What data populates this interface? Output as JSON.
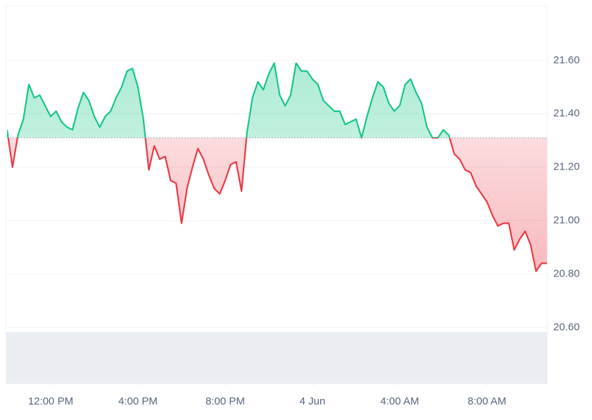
{
  "chart_data": {
    "type": "line",
    "x": [
      10,
      10.25,
      10.5,
      10.75,
      11,
      11.25,
      11.5,
      11.75,
      12,
      12.25,
      12.5,
      12.75,
      13,
      13.25,
      13.5,
      13.75,
      14,
      14.25,
      14.5,
      14.75,
      15,
      15.25,
      15.5,
      15.75,
      16,
      16.25,
      16.5,
      16.75,
      17,
      17.25,
      17.5,
      17.75,
      18,
      18.25,
      18.5,
      18.75,
      19,
      19.25,
      19.5,
      19.75,
      20,
      20.25,
      20.5,
      20.75,
      21,
      21.25,
      21.5,
      21.75,
      22,
      22.25,
      22.5,
      22.75,
      23,
      23.25,
      23.5,
      23.75,
      24,
      24.25,
      24.5,
      24.75,
      25,
      25.25,
      25.5,
      25.75,
      26,
      26.25,
      26.5,
      26.75,
      27,
      27.25,
      27.5,
      27.75,
      28,
      28.25,
      28.5,
      28.75,
      29,
      29.25,
      29.5,
      29.75,
      30,
      30.25,
      30.5,
      30.75,
      31,
      31.25,
      31.5,
      31.75,
      32,
      32.25,
      32.5,
      32.75,
      33,
      33.25,
      33.5,
      33.75,
      34,
      34.25,
      34.5,
      34.75
    ],
    "values": [
      21.34,
      21.2,
      21.32,
      21.38,
      21.51,
      21.46,
      21.47,
      21.43,
      21.39,
      21.41,
      21.37,
      21.35,
      21.34,
      21.42,
      21.48,
      21.45,
      21.39,
      21.35,
      21.39,
      21.41,
      21.46,
      21.5,
      21.56,
      21.57,
      21.5,
      21.38,
      21.19,
      21.28,
      21.23,
      21.24,
      21.15,
      21.14,
      20.99,
      21.12,
      21.2,
      21.27,
      21.23,
      21.17,
      21.12,
      21.1,
      21.15,
      21.21,
      21.22,
      21.11,
      21.33,
      21.46,
      21.52,
      21.49,
      21.55,
      21.59,
      21.47,
      21.43,
      21.47,
      21.59,
      21.56,
      21.56,
      21.53,
      21.51,
      21.45,
      21.43,
      21.41,
      21.41,
      21.36,
      21.37,
      21.38,
      21.31,
      21.39,
      21.46,
      21.52,
      21.5,
      21.44,
      21.41,
      21.43,
      21.51,
      21.53,
      21.48,
      21.44,
      21.35,
      21.31,
      21.31,
      21.34,
      21.32,
      21.25,
      21.23,
      21.19,
      21.18,
      21.13,
      21.1,
      21.07,
      21.02,
      20.98,
      20.99,
      20.99,
      20.89,
      20.93,
      20.96,
      20.91,
      20.81,
      20.84,
      20.84
    ],
    "reference_value": 21.31,
    "colors": {
      "above": "#16c784",
      "below": "#ea3943"
    },
    "xlim": [
      10,
      34.75
    ],
    "xticks": [
      {
        "value": 12,
        "label": "12:00 PM"
      },
      {
        "value": 16,
        "label": "4:00 PM"
      },
      {
        "value": 20,
        "label": "8:00 PM"
      },
      {
        "value": 24,
        "label": "4 Jun"
      },
      {
        "value": 28,
        "label": "4:00 AM"
      },
      {
        "value": 32,
        "label": "8:00 AM"
      }
    ],
    "ylim": [
      20.39,
      21.8
    ],
    "yticks": [
      {
        "value": 20.6,
        "label": "20.60"
      },
      {
        "value": 20.8,
        "label": "20.80"
      },
      {
        "value": 21.0,
        "label": "21.00"
      },
      {
        "value": 21.2,
        "label": "21.20"
      },
      {
        "value": 21.4,
        "label": "21.40"
      },
      {
        "value": 21.6,
        "label": "21.60"
      }
    ],
    "grid": true
  }
}
